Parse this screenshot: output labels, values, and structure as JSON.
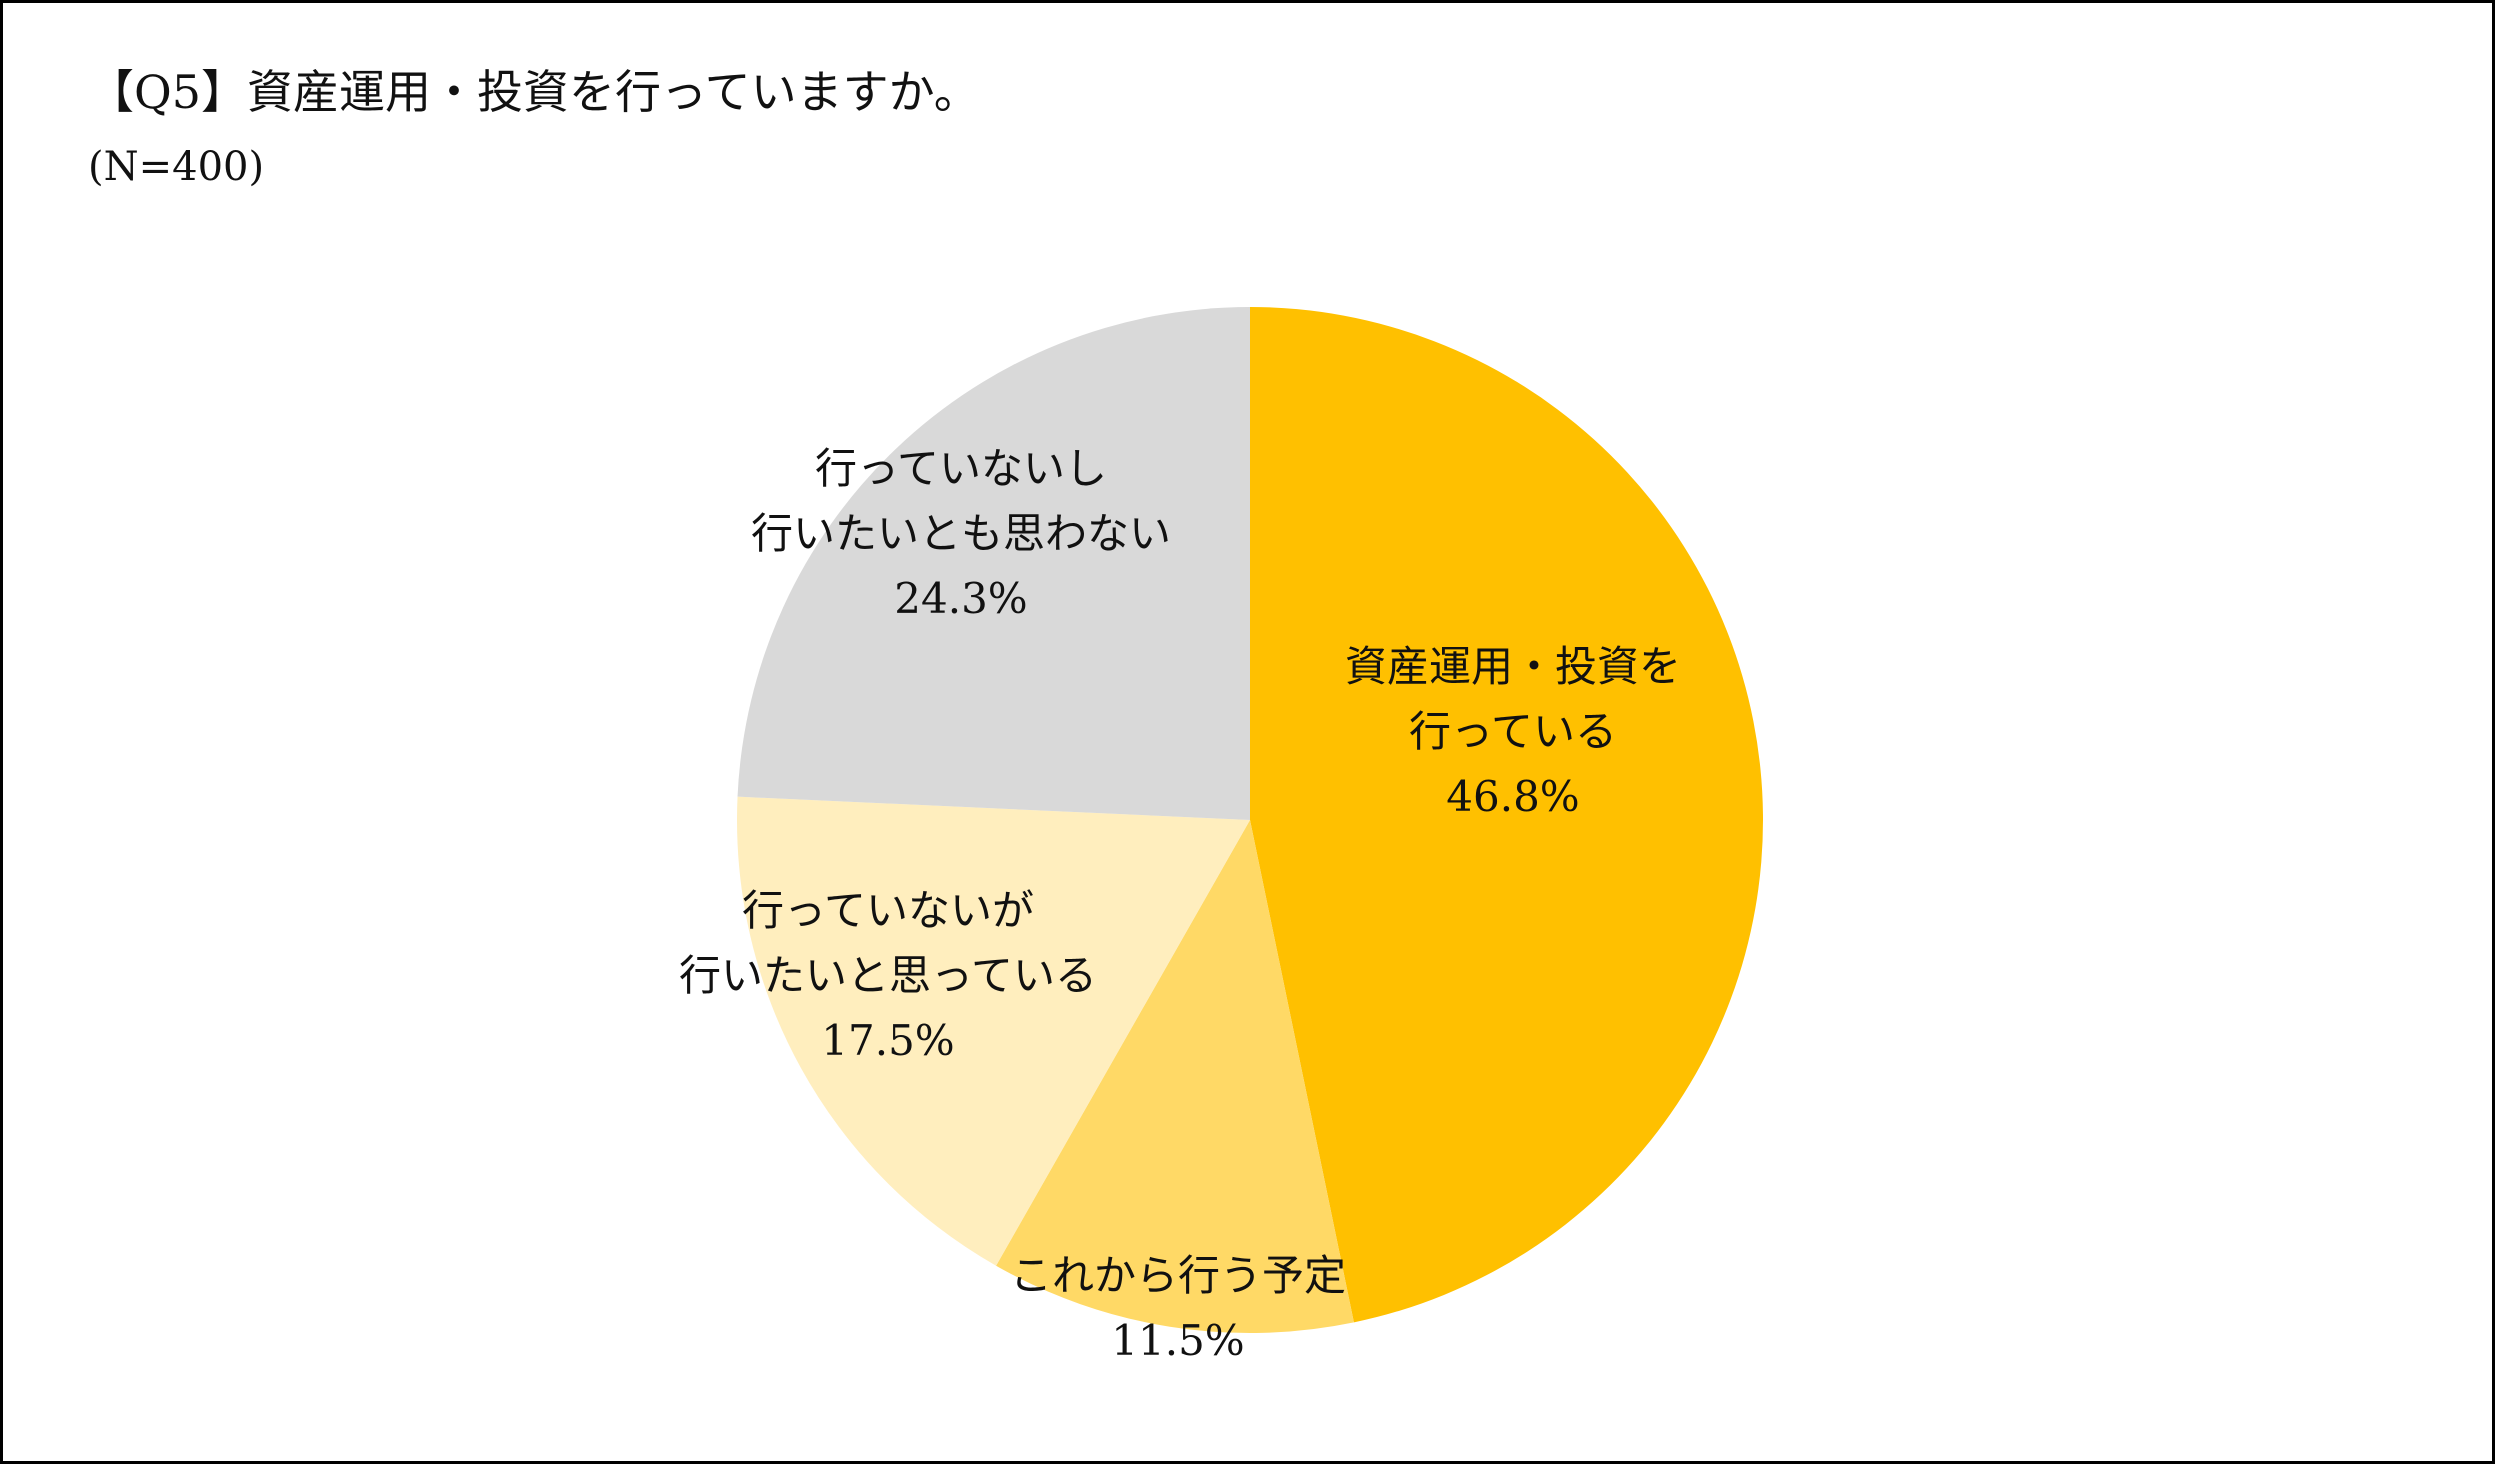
{
  "title": "【Q5】資産運用・投資を行っていますか。",
  "subtitle": "(N=400)",
  "chart_data": {
    "type": "pie",
    "start_angle_deg": 0,
    "direction": "clockwise",
    "slices": [
      {
        "label_lines": [
          "資産運用・投資を",
          "行っている"
        ],
        "percent_label": "46.8%",
        "value": 46.8,
        "color": "#FFC000"
      },
      {
        "label_lines": [
          "これから行う予定"
        ],
        "percent_label": "11.5%",
        "value": 11.5,
        "color": "#FFD966"
      },
      {
        "label_lines": [
          "行っていないが",
          "行いたいと思っている"
        ],
        "percent_label": "17.5%",
        "value": 17.5,
        "color": "#FFEEBE"
      },
      {
        "label_lines": [
          "行っていないし",
          "行いたいとも思わない"
        ],
        "percent_label": "24.3%",
        "value": 24.3,
        "color": "#D9D9D9"
      }
    ]
  }
}
